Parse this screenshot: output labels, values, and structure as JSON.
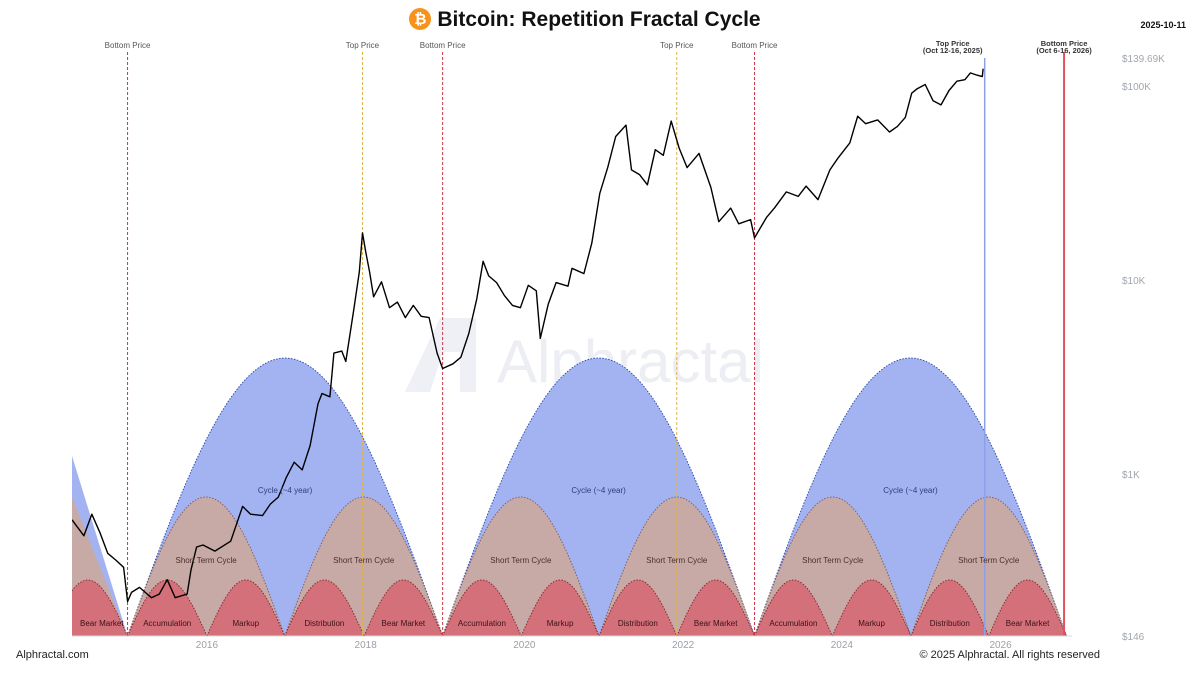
{
  "header": {
    "title": "Bitcoin: Repetition Fractal Cycle",
    "date": "2025-10-11"
  },
  "footer": {
    "source": "Alphractal.com",
    "copyright": "© 2025 Alphractal. All rights reserved"
  },
  "watermark": "Alphractal",
  "colors": {
    "cycle": "#a3b3f2",
    "short_cycle": "#c7aaa5",
    "phase": "#d4707a",
    "price": "#000000",
    "bottom_line": "#cc3344",
    "top_line": "#e3b341",
    "accent_btc": "#f7931a"
  },
  "chart_data": {
    "type": "line",
    "title": "Bitcoin: Repetition Fractal Cycle",
    "y_scale": "log",
    "ylim": [
      146,
      139690
    ],
    "y_ticks": [
      {
        "value": 139690,
        "label": "$139.69K"
      },
      {
        "value": 100000,
        "label": "$100K"
      },
      {
        "value": 10000,
        "label": "$10K"
      },
      {
        "value": 1000,
        "label": "$1K"
      },
      {
        "value": 146,
        "label": "$146"
      }
    ],
    "xlim": [
      2014.3,
      2026.9
    ],
    "x_ticks": [
      {
        "value": 2016,
        "label": "2016"
      },
      {
        "value": 2018,
        "label": "2018"
      },
      {
        "value": 2020,
        "label": "2020"
      },
      {
        "value": 2022,
        "label": "2022"
      },
      {
        "value": 2024,
        "label": "2024"
      },
      {
        "value": 2026,
        "label": "2026"
      }
    ],
    "series": [
      {
        "points": [
          [
            2014.3,
            580
          ],
          [
            2014.45,
            480
          ],
          [
            2014.55,
            620
          ],
          [
            2014.65,
            500
          ],
          [
            2014.75,
            390
          ],
          [
            2014.85,
            360
          ],
          [
            2014.95,
            330
          ],
          [
            2015.0,
            220
          ],
          [
            2015.05,
            245
          ],
          [
            2015.15,
            260
          ],
          [
            2015.3,
            230
          ],
          [
            2015.4,
            240
          ],
          [
            2015.5,
            285
          ],
          [
            2015.6,
            230
          ],
          [
            2015.75,
            240
          ],
          [
            2015.8,
            320
          ],
          [
            2015.87,
            420
          ],
          [
            2015.95,
            430
          ],
          [
            2016.1,
            400
          ],
          [
            2016.3,
            450
          ],
          [
            2016.45,
            680
          ],
          [
            2016.55,
            620
          ],
          [
            2016.7,
            610
          ],
          [
            2016.8,
            700
          ],
          [
            2016.9,
            760
          ],
          [
            2017.0,
            960
          ],
          [
            2017.1,
            1150
          ],
          [
            2017.2,
            1050
          ],
          [
            2017.3,
            1400
          ],
          [
            2017.4,
            2300
          ],
          [
            2017.45,
            2600
          ],
          [
            2017.55,
            2500
          ],
          [
            2017.6,
            4200
          ],
          [
            2017.7,
            4300
          ],
          [
            2017.75,
            3800
          ],
          [
            2017.85,
            7000
          ],
          [
            2017.92,
            11000
          ],
          [
            2017.96,
            17500
          ],
          [
            2018.0,
            14000
          ],
          [
            2018.05,
            11000
          ],
          [
            2018.1,
            8200
          ],
          [
            2018.2,
            9800
          ],
          [
            2018.3,
            7200
          ],
          [
            2018.4,
            7700
          ],
          [
            2018.5,
            6400
          ],
          [
            2018.6,
            7400
          ],
          [
            2018.7,
            6500
          ],
          [
            2018.8,
            6400
          ],
          [
            2018.9,
            4200
          ],
          [
            2018.97,
            3500
          ],
          [
            2019.1,
            3700
          ],
          [
            2019.2,
            4000
          ],
          [
            2019.3,
            5300
          ],
          [
            2019.4,
            8000
          ],
          [
            2019.48,
            12500
          ],
          [
            2019.55,
            10500
          ],
          [
            2019.65,
            9700
          ],
          [
            2019.75,
            8300
          ],
          [
            2019.85,
            7400
          ],
          [
            2019.95,
            7200
          ],
          [
            2020.05,
            9400
          ],
          [
            2020.15,
            8800
          ],
          [
            2020.2,
            5000
          ],
          [
            2020.3,
            7500
          ],
          [
            2020.4,
            9700
          ],
          [
            2020.55,
            9300
          ],
          [
            2020.6,
            11500
          ],
          [
            2020.75,
            10800
          ],
          [
            2020.85,
            15500
          ],
          [
            2020.95,
            28000
          ],
          [
            2021.05,
            38000
          ],
          [
            2021.15,
            55000
          ],
          [
            2021.28,
            63000
          ],
          [
            2021.35,
            37000
          ],
          [
            2021.45,
            35000
          ],
          [
            2021.55,
            31000
          ],
          [
            2021.65,
            47000
          ],
          [
            2021.75,
            44000
          ],
          [
            2021.85,
            66000
          ],
          [
            2021.95,
            48000
          ],
          [
            2022.05,
            38000
          ],
          [
            2022.2,
            45000
          ],
          [
            2022.35,
            30000
          ],
          [
            2022.45,
            20000
          ],
          [
            2022.6,
            23500
          ],
          [
            2022.7,
            19500
          ],
          [
            2022.85,
            20500
          ],
          [
            2022.9,
            16500
          ],
          [
            2023.05,
            21000
          ],
          [
            2023.15,
            23500
          ],
          [
            2023.3,
            28500
          ],
          [
            2023.45,
            27000
          ],
          [
            2023.55,
            30500
          ],
          [
            2023.7,
            26000
          ],
          [
            2023.85,
            37000
          ],
          [
            2023.95,
            42500
          ],
          [
            2024.1,
            51000
          ],
          [
            2024.2,
            70000
          ],
          [
            2024.3,
            64000
          ],
          [
            2024.45,
            67000
          ],
          [
            2024.6,
            58000
          ],
          [
            2024.7,
            62000
          ],
          [
            2024.8,
            69000
          ],
          [
            2024.88,
            92000
          ],
          [
            2024.95,
            97000
          ],
          [
            2025.05,
            102000
          ],
          [
            2025.15,
            84000
          ],
          [
            2025.25,
            80000
          ],
          [
            2025.35,
            95000
          ],
          [
            2025.45,
            106000
          ],
          [
            2025.55,
            108000
          ],
          [
            2025.62,
            117000
          ],
          [
            2025.7,
            114000
          ],
          [
            2025.77,
            112000
          ],
          [
            2025.78,
            123000
          ]
        ]
      }
    ],
    "bottom_price_lines": [
      {
        "x": 2015.0,
        "label": "Bottom Price"
      },
      {
        "x": 2018.97,
        "label": "Bottom Price"
      },
      {
        "x": 2022.9,
        "label": "Bottom Price"
      }
    ],
    "top_price_lines": [
      {
        "x": 2017.96,
        "label": "Top Price"
      },
      {
        "x": 2021.92,
        "label": "Top Price"
      }
    ],
    "projections": [
      {
        "x": 2025.8,
        "label": "Top Price",
        "sublabel": "(Oct 12-16, 2025)"
      },
      {
        "x": 2026.8,
        "label": "Bottom Price",
        "sublabel": "(Oct 6-16, 2026)"
      }
    ],
    "cycles": [
      {
        "start": 2015.0,
        "end": 2018.97,
        "label": "Cycle (~4 year)"
      },
      {
        "start": 2018.97,
        "end": 2022.9,
        "label": "Cycle (~4 year)"
      },
      {
        "start": 2022.9,
        "end": 2026.83,
        "label": "Cycle (~4 year)"
      }
    ],
    "short_cycles": [
      {
        "start": 2015.0,
        "end": 2016.98,
        "label": "Short Term Cycle"
      },
      {
        "start": 2016.98,
        "end": 2018.97,
        "label": "Short Term Cycle"
      },
      {
        "start": 2018.97,
        "end": 2020.94,
        "label": "Short Term Cycle"
      },
      {
        "start": 2020.94,
        "end": 2022.9,
        "label": "Short Term Cycle"
      },
      {
        "start": 2022.9,
        "end": 2024.87,
        "label": "Short Term Cycle"
      },
      {
        "start": 2024.87,
        "end": 2026.83,
        "label": "Short Term Cycle"
      }
    ],
    "phases": [
      {
        "start": 2015.0,
        "end": 2016.0,
        "label": "Accumulation"
      },
      {
        "start": 2016.0,
        "end": 2016.98,
        "label": "Markup"
      },
      {
        "start": 2016.98,
        "end": 2017.98,
        "label": "Distribution"
      },
      {
        "start": 2017.98,
        "end": 2018.97,
        "label": "Bear Market"
      },
      {
        "start": 2018.97,
        "end": 2019.96,
        "label": "Accumulation"
      },
      {
        "start": 2019.96,
        "end": 2020.94,
        "label": "Markup"
      },
      {
        "start": 2020.94,
        "end": 2021.92,
        "label": "Distribution"
      },
      {
        "start": 2021.92,
        "end": 2022.9,
        "label": "Bear Market"
      },
      {
        "start": 2022.9,
        "end": 2023.88,
        "label": "Accumulation"
      },
      {
        "start": 2023.88,
        "end": 2024.87,
        "label": "Markup"
      },
      {
        "start": 2024.87,
        "end": 2025.85,
        "label": "Distribution"
      },
      {
        "start": 2025.85,
        "end": 2026.83,
        "label": "Bear Market"
      }
    ],
    "prior_phase": {
      "start": 2014.0,
      "end": 2015.0,
      "label": "Bear Market"
    }
  }
}
